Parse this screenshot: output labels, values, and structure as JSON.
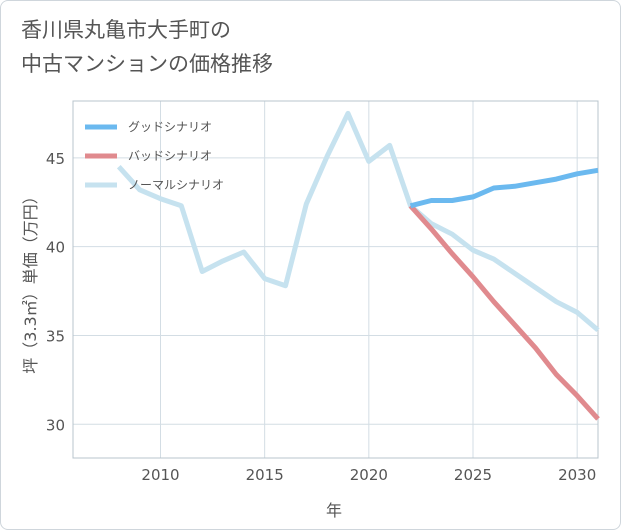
{
  "title": {
    "line1": "香川県丸亀市大手町の",
    "line2": "中古マンションの価格推移"
  },
  "chart_data": {
    "type": "line",
    "xlabel": "年",
    "ylabel": "坪（3.3㎡）単価（万円）",
    "xlim": [
      2005.8,
      2031
    ],
    "ylim": [
      28.1,
      48.2
    ],
    "x_ticks": [
      2010,
      2015,
      2020,
      2025,
      2030
    ],
    "y_ticks": [
      30,
      35,
      40,
      45
    ],
    "grid": true,
    "legend_position": "top-left",
    "series": [
      {
        "name": "グッドシナリオ",
        "color": "#6bb9ef",
        "x": [
          2022,
          2023,
          2024,
          2025,
          2026,
          2027,
          2028,
          2029,
          2030,
          2031
        ],
        "values": [
          42.3,
          42.6,
          42.6,
          42.8,
          43.3,
          43.4,
          43.6,
          43.8,
          44.1,
          44.3
        ]
      },
      {
        "name": "バッドシナリオ",
        "color": "#e08a8e",
        "x": [
          2022,
          2023,
          2024,
          2025,
          2026,
          2027,
          2028,
          2029,
          2030,
          2031
        ],
        "values": [
          42.3,
          41.0,
          39.6,
          38.3,
          36.9,
          35.6,
          34.3,
          32.8,
          31.6,
          30.3
        ]
      },
      {
        "name": "ノーマルシナリオ",
        "color": "#c6e2ef",
        "x": [
          2008,
          2009,
          2010,
          2011,
          2012,
          2013,
          2014,
          2015,
          2016,
          2017,
          2018,
          2019,
          2020,
          2021,
          2022,
          2023,
          2024,
          2025,
          2026,
          2027,
          2028,
          2029,
          2030,
          2031
        ],
        "values": [
          44.5,
          43.2,
          42.7,
          42.3,
          38.6,
          39.2,
          39.7,
          38.2,
          37.8,
          42.4,
          45.1,
          47.5,
          44.8,
          45.7,
          42.3,
          41.3,
          40.7,
          39.8,
          39.3,
          38.5,
          37.7,
          36.9,
          36.3,
          35.3
        ]
      }
    ]
  }
}
